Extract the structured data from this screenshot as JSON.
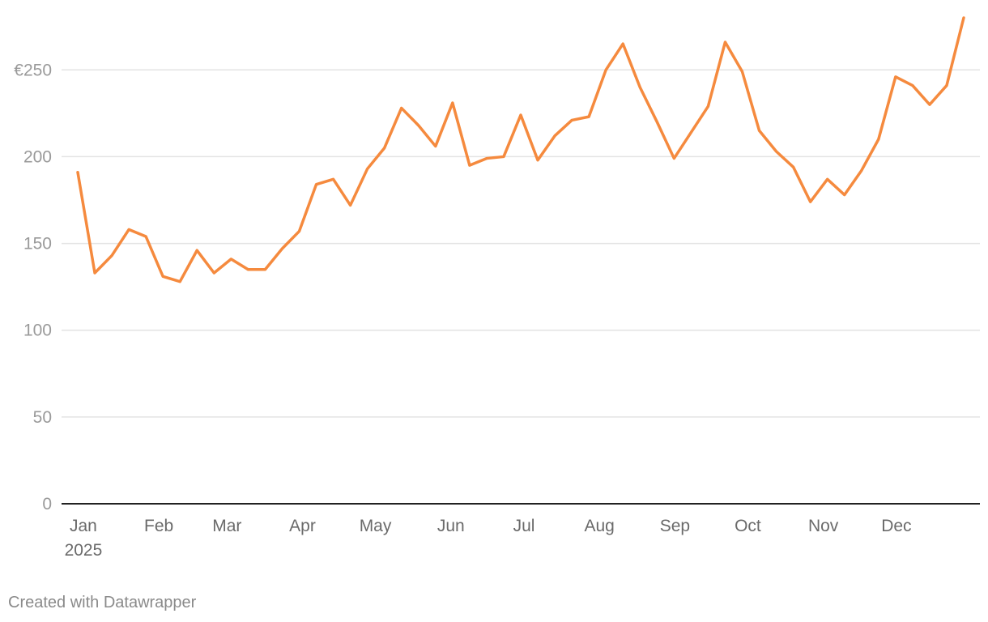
{
  "colors": {
    "series": "#f58a3e",
    "grid": "#e3e3e3",
    "baseline": "#222222"
  },
  "footer": {
    "credit": "Created with Datawrapper"
  },
  "chart_data": {
    "type": "line",
    "yticks": [
      {
        "value": 0,
        "label": "0"
      },
      {
        "value": 50,
        "label": "50"
      },
      {
        "value": 100,
        "label": "100"
      },
      {
        "value": 150,
        "label": "150"
      },
      {
        "value": 200,
        "label": "200"
      },
      {
        "value": 250,
        "label": "€250"
      }
    ],
    "ylim": [
      0,
      280
    ],
    "xlim": [
      0,
      52
    ],
    "grid": true,
    "xticks": [
      {
        "value": 0.33,
        "label": "Jan",
        "sub": "2025"
      },
      {
        "value": 4.76,
        "label": "Feb"
      },
      {
        "value": 8.76,
        "label": "Mar"
      },
      {
        "value": 13.19,
        "label": "Apr"
      },
      {
        "value": 17.47,
        "label": "May"
      },
      {
        "value": 21.9,
        "label": "Jun"
      },
      {
        "value": 26.19,
        "label": "Jul"
      },
      {
        "value": 30.62,
        "label": "Aug"
      },
      {
        "value": 35.05,
        "label": "Sep"
      },
      {
        "value": 39.33,
        "label": "Oct"
      },
      {
        "value": 43.76,
        "label": "Nov"
      },
      {
        "value": 48.05,
        "label": "Dec"
      }
    ],
    "series": [
      {
        "x": [
          0,
          1,
          2,
          3,
          4,
          5,
          6,
          7,
          8,
          9,
          10,
          11,
          12,
          13,
          14,
          15,
          16,
          17,
          18,
          19,
          20,
          21,
          22,
          23,
          24,
          25,
          26,
          27,
          28,
          29,
          30,
          31,
          32,
          33,
          34,
          35,
          36,
          37,
          38,
          39,
          40,
          41,
          42,
          43,
          44,
          45,
          46,
          47,
          48,
          49,
          50,
          51,
          52
        ],
        "values": [
          191,
          133,
          143,
          158,
          154,
          131,
          128,
          146,
          133,
          141,
          135,
          135,
          147,
          157,
          184,
          187,
          172,
          193,
          205,
          228,
          218,
          206,
          231,
          195,
          199,
          200,
          224,
          198,
          212,
          221,
          223,
          250,
          265,
          240,
          220,
          199,
          214,
          229,
          266,
          249,
          215,
          203,
          194,
          174,
          187,
          178,
          192,
          210,
          246,
          241,
          230,
          241,
          280
        ]
      }
    ]
  }
}
